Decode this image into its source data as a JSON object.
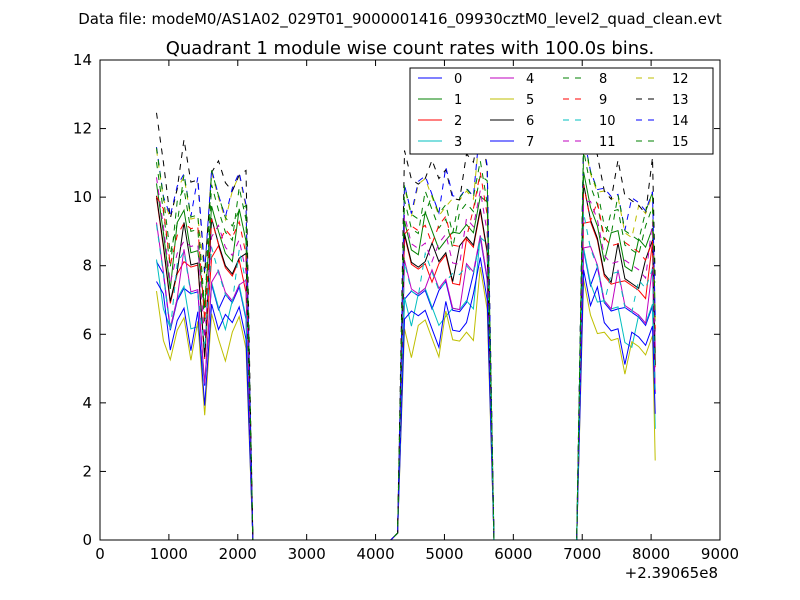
{
  "chart_data": {
    "type": "line",
    "suptitle": "Data file: modeM0/AS1A02_029T01_9000001416_09930cztM0_level2_quad_clean.evt",
    "title": "Quadrant 1 module wise count rates with 100.0s bins.",
    "xlabel": "",
    "ylabel": "",
    "x_offset_label": "+2.39065e8",
    "xlim": [
      0,
      9000
    ],
    "ylim": [
      0,
      14
    ],
    "x_ticks": [
      "0",
      "1000",
      "2000",
      "3000",
      "4000",
      "5000",
      "6000",
      "7000",
      "8000",
      "9000"
    ],
    "y_ticks": [
      "0",
      "2",
      "4",
      "6",
      "8",
      "10",
      "12",
      "14"
    ],
    "grid": false,
    "legend_position": "top-right",
    "legend_columns": 4,
    "x": [
      820,
      920,
      1020,
      1120,
      1220,
      1320,
      1420,
      1520,
      1620,
      1720,
      1820,
      1920,
      2020,
      2120,
      2220,
      2320,
      2420,
      2520,
      2620,
      2720,
      2820,
      2920,
      3020,
      3120,
      3220,
      3320,
      3420,
      3520,
      3620,
      3720,
      3820,
      3920,
      4020,
      4120,
      4220,
      4320,
      4420,
      4520,
      4620,
      4720,
      4820,
      4920,
      5020,
      5120,
      5220,
      5320,
      5420,
      5520,
      5620,
      5720,
      5820,
      5920,
      6020,
      6120,
      6220,
      6320,
      6420,
      6520,
      6620,
      6720,
      6820,
      6920,
      7020,
      7120,
      7220,
      7320,
      7420,
      7520,
      7620,
      7720,
      7820,
      7920,
      8020,
      8060
    ],
    "base_series": [
      9.5,
      8.3,
      6.9,
      8.0,
      8.6,
      7.6,
      7.9,
      5.4,
      8.6,
      8.1,
      7.7,
      7.7,
      8.4,
      7.7,
      0,
      0,
      0,
      0,
      0,
      0,
      0,
      0,
      0,
      0,
      0,
      0,
      0,
      0,
      0,
      0,
      0,
      0,
      0,
      0,
      0,
      0.2,
      8.4,
      7.8,
      7.9,
      8.3,
      8.0,
      7.7,
      8.2,
      7.6,
      7.8,
      8.3,
      8.3,
      9.6,
      8.6,
      0,
      0,
      0,
      0,
      0,
      0,
      0,
      0,
      0,
      0,
      0,
      0,
      0,
      9.6,
      8.8,
      8.5,
      7.7,
      7.7,
      8.0,
      7.2,
      7.3,
      7.4,
      7.4,
      8.2,
      4.8
    ],
    "series": [
      {
        "name": "0",
        "color": "#0000ff",
        "dashed": false,
        "offset": -0.9
      },
      {
        "name": "1",
        "color": "#008000",
        "dashed": false,
        "offset": 0.9
      },
      {
        "name": "2",
        "color": "#ff0000",
        "dashed": false,
        "offset": 0.0
      },
      {
        "name": "3",
        "color": "#00bfbf",
        "dashed": false,
        "offset": -1.2
      },
      {
        "name": "4",
        "color": "#bf00bf",
        "dashed": false,
        "offset": -0.6
      },
      {
        "name": "5",
        "color": "#bfbf00",
        "dashed": false,
        "offset": -2.0
      },
      {
        "name": "6",
        "color": "#000000",
        "dashed": false,
        "offset": 0.3
      },
      {
        "name": "7",
        "color": "#0000ff",
        "dashed": false,
        "offset": -1.6
      },
      {
        "name": "8",
        "color": "#008000",
        "dashed": true,
        "offset": 1.4
      },
      {
        "name": "9",
        "color": "#ff0000",
        "dashed": true,
        "offset": 1.0
      },
      {
        "name": "10",
        "color": "#00bfbf",
        "dashed": true,
        "offset": -0.3
      },
      {
        "name": "11",
        "color": "#bf00bf",
        "dashed": true,
        "offset": 0.6
      },
      {
        "name": "12",
        "color": "#bfbf00",
        "dashed": true,
        "offset": 2.0
      },
      {
        "name": "13",
        "color": "#000000",
        "dashed": true,
        "offset": 2.6
      },
      {
        "name": "14",
        "color": "#0000ff",
        "dashed": true,
        "offset": 2.2
      },
      {
        "name": "15",
        "color": "#008000",
        "dashed": true,
        "offset": 1.7
      }
    ]
  }
}
